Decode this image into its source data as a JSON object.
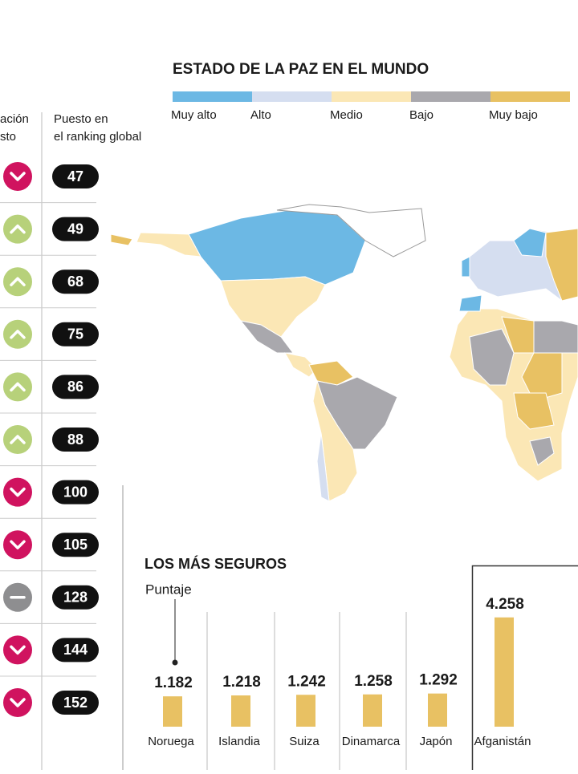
{
  "table": {
    "headers": [
      "ación",
      "sto",
      "Puesto en",
      "el ranking global"
    ],
    "rows": [
      {
        "trend": "down",
        "rank": 47
      },
      {
        "trend": "up",
        "rank": 49
      },
      {
        "trend": "up",
        "rank": 68
      },
      {
        "trend": "up",
        "rank": 75
      },
      {
        "trend": "up",
        "rank": 86
      },
      {
        "trend": "up",
        "rank": 88
      },
      {
        "trend": "down",
        "rank": 100
      },
      {
        "trend": "down",
        "rank": 105
      },
      {
        "trend": "same",
        "rank": 128
      },
      {
        "trend": "down",
        "rank": 144
      },
      {
        "trend": "down",
        "rank": 152
      }
    ]
  },
  "map": {
    "title": "ESTADO DE LA PAZ EN EL MUNDO",
    "legend": [
      {
        "label": "Muy alto",
        "color": "#6cb8e4"
      },
      {
        "label": "Alto",
        "color": "#d5def0"
      },
      {
        "label": "Medio",
        "color": "#fbe7b5"
      },
      {
        "label": "Bajo",
        "color": "#a9a8ad"
      },
      {
        "label": "Muy bajo",
        "color": "#e8c163"
      }
    ]
  },
  "chart_data": {
    "type": "bar",
    "title": "LOS MÁS SEGUROS",
    "y_label": "Puntaje",
    "color": "#e8c163",
    "categories": [
      "Noruega",
      "Islandia",
      "Suiza",
      "Dinamarca",
      "Japón",
      "Afganistán"
    ],
    "values": [
      1.182,
      1.218,
      1.242,
      1.258,
      1.292,
      4.258
    ]
  }
}
